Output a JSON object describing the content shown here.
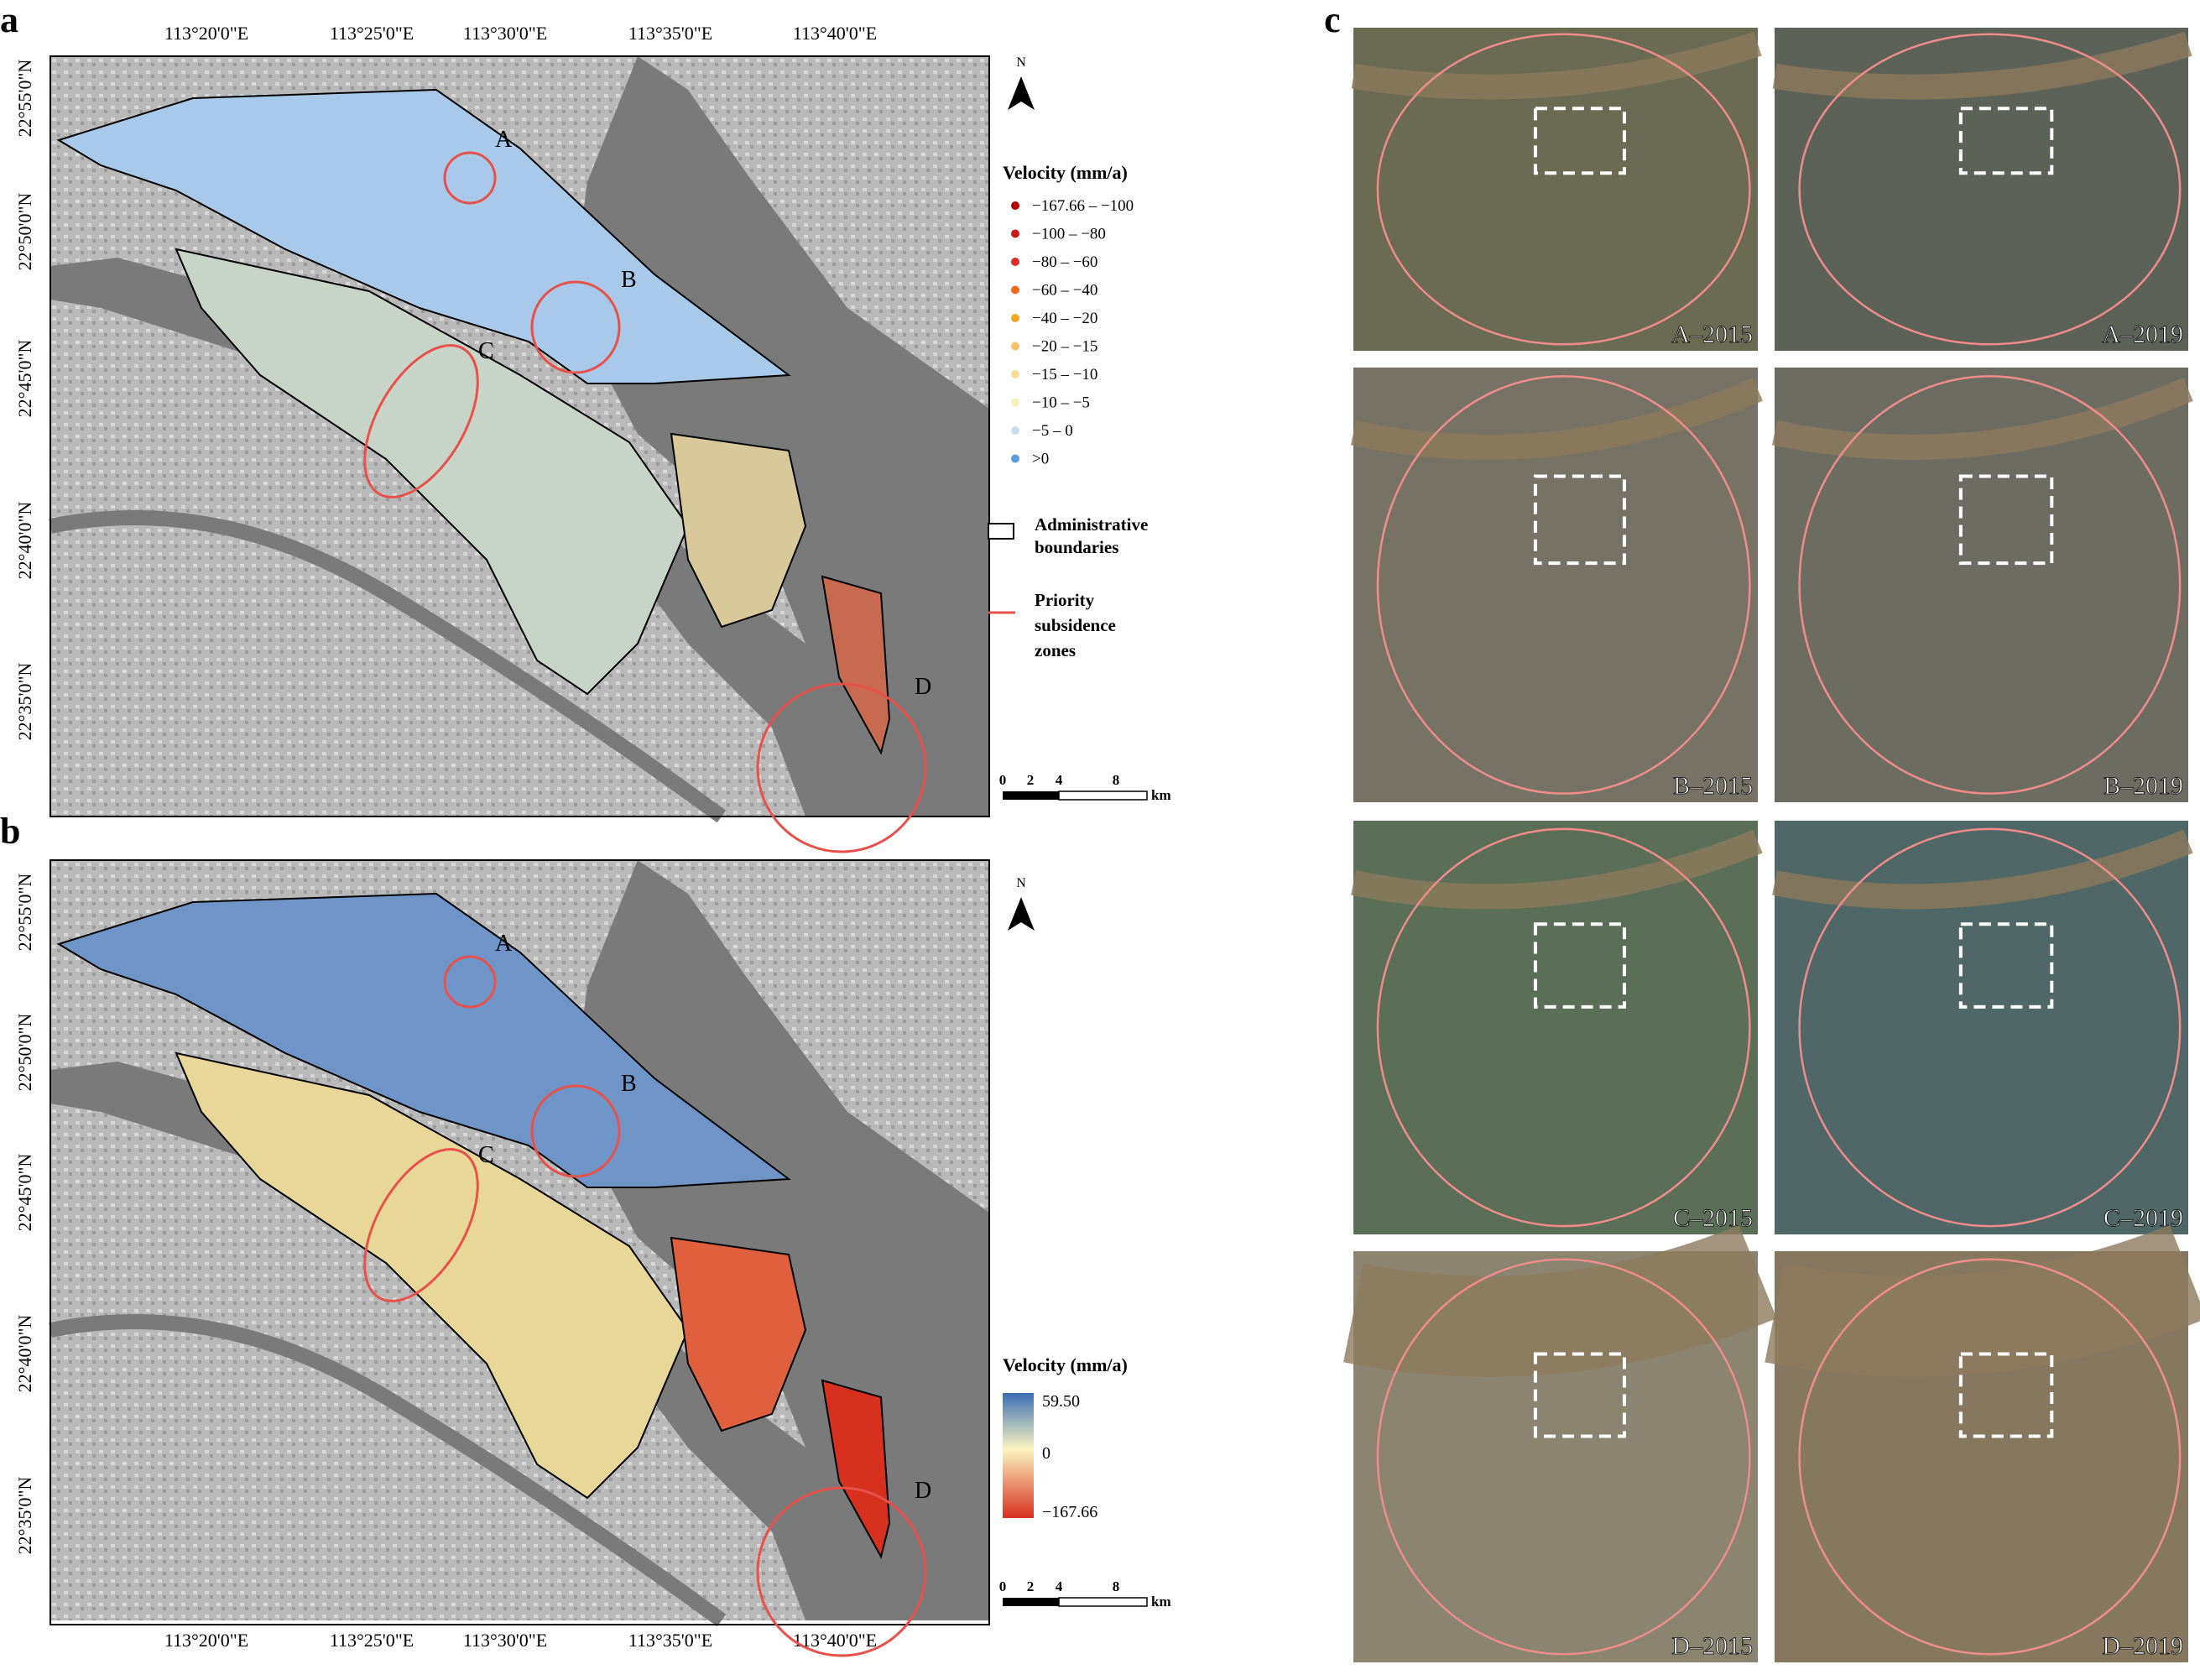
{
  "panels": {
    "a": {
      "label": "a",
      "x_ticks": [
        "113°20'0\"E",
        "113°25'0\"E",
        "113°30'0\"E",
        "113°35'0\"E",
        "113°40'0\"E"
      ],
      "y_ticks": [
        "22°55'0\"N",
        "22°50'0\"N",
        "22°45'0\"N",
        "22°40'0\"N",
        "22°35'0\"N"
      ],
      "zones": [
        "A",
        "B",
        "C",
        "D"
      ],
      "north": "N",
      "legend": {
        "title": "Velocity (mm/a)",
        "classes": [
          "−167.66 – −100",
          "−100 – −80",
          "−80 – −60",
          "−60 – −40",
          "−40 – −20",
          "−20 – −15",
          "−15 – −10",
          "−10 – −5",
          "−5 – 0",
          ">0"
        ],
        "boundary": [
          "Administrative",
          "boundaries"
        ],
        "priority": [
          "Priority",
          "subsidence",
          "zones"
        ]
      },
      "scale": {
        "ticks": [
          "0",
          "2",
          "4",
          "8"
        ],
        "unit": "km"
      }
    },
    "b": {
      "label": "b",
      "x_ticks": [
        "113°20'0\"E",
        "113°25'0\"E",
        "113°30'0\"E",
        "113°35'0\"E",
        "113°40'0\"E"
      ],
      "y_ticks": [
        "22°55'0\"N",
        "22°50'0\"N",
        "22°45'0\"N",
        "22°40'0\"N",
        "22°35'0\"N"
      ],
      "zones": [
        "A",
        "B",
        "C",
        "D"
      ],
      "north": "N",
      "legend": {
        "title": "Velocity (mm/a)",
        "max": "59.50",
        "mid": "0",
        "min": "−167.66"
      },
      "scale": {
        "ticks": [
          "0",
          "2",
          "4",
          "8"
        ],
        "unit": "km"
      }
    },
    "c": {
      "label": "c",
      "images": [
        "A–2015",
        "A–2019",
        "B–2015",
        "B–2019",
        "C–2015",
        "C–2019",
        "D–2015",
        "D–2019"
      ]
    }
  }
}
